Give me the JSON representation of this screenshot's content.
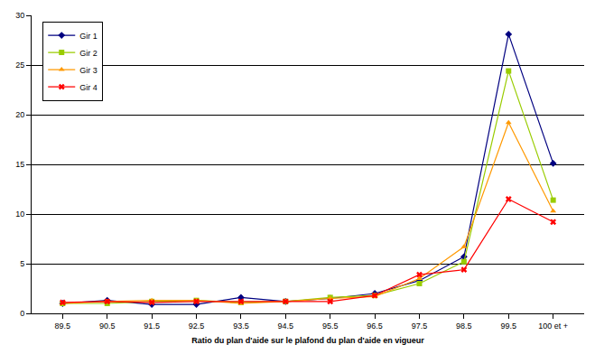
{
  "chart_data": {
    "type": "line",
    "x_label": "Ratio du plan d'aide sur le plafond du plan d'aide en vigueur",
    "categories": [
      "89.5",
      "90.5",
      "91.5",
      "92.5",
      "93.5",
      "94.5",
      "95.5",
      "96.5",
      "97.5",
      "98.5",
      "99.5",
      "100 et +"
    ],
    "series": [
      {
        "name": "Gir 1",
        "color": "#000080",
        "marker": "diamond",
        "values": [
          1.0,
          1.3,
          0.9,
          0.9,
          1.6,
          1.2,
          1.5,
          2.0,
          3.3,
          5.7,
          28.1,
          15.1
        ]
      },
      {
        "name": "Gir 2",
        "color": "#99CC00",
        "marker": "square",
        "values": [
          1.0,
          1.0,
          1.2,
          1.3,
          1.1,
          1.2,
          1.6,
          1.8,
          3.0,
          5.2,
          24.4,
          11.4
        ]
      },
      {
        "name": "Gir 3",
        "color": "#FF9900",
        "marker": "triangle-up",
        "values": [
          1.0,
          1.2,
          1.3,
          1.3,
          1.0,
          1.2,
          1.5,
          1.7,
          3.5,
          6.7,
          19.2,
          10.3
        ]
      },
      {
        "name": "Gir 4",
        "color": "#FF0000",
        "marker": "x",
        "values": [
          1.1,
          1.2,
          1.1,
          1.2,
          1.2,
          1.2,
          1.2,
          1.8,
          3.9,
          4.4,
          11.5,
          9.2
        ]
      }
    ],
    "ylim": [
      0,
      30
    ],
    "yticks": [
      0,
      5,
      10,
      15,
      20,
      25,
      30
    ],
    "grid": true,
    "legend": "top-left"
  }
}
